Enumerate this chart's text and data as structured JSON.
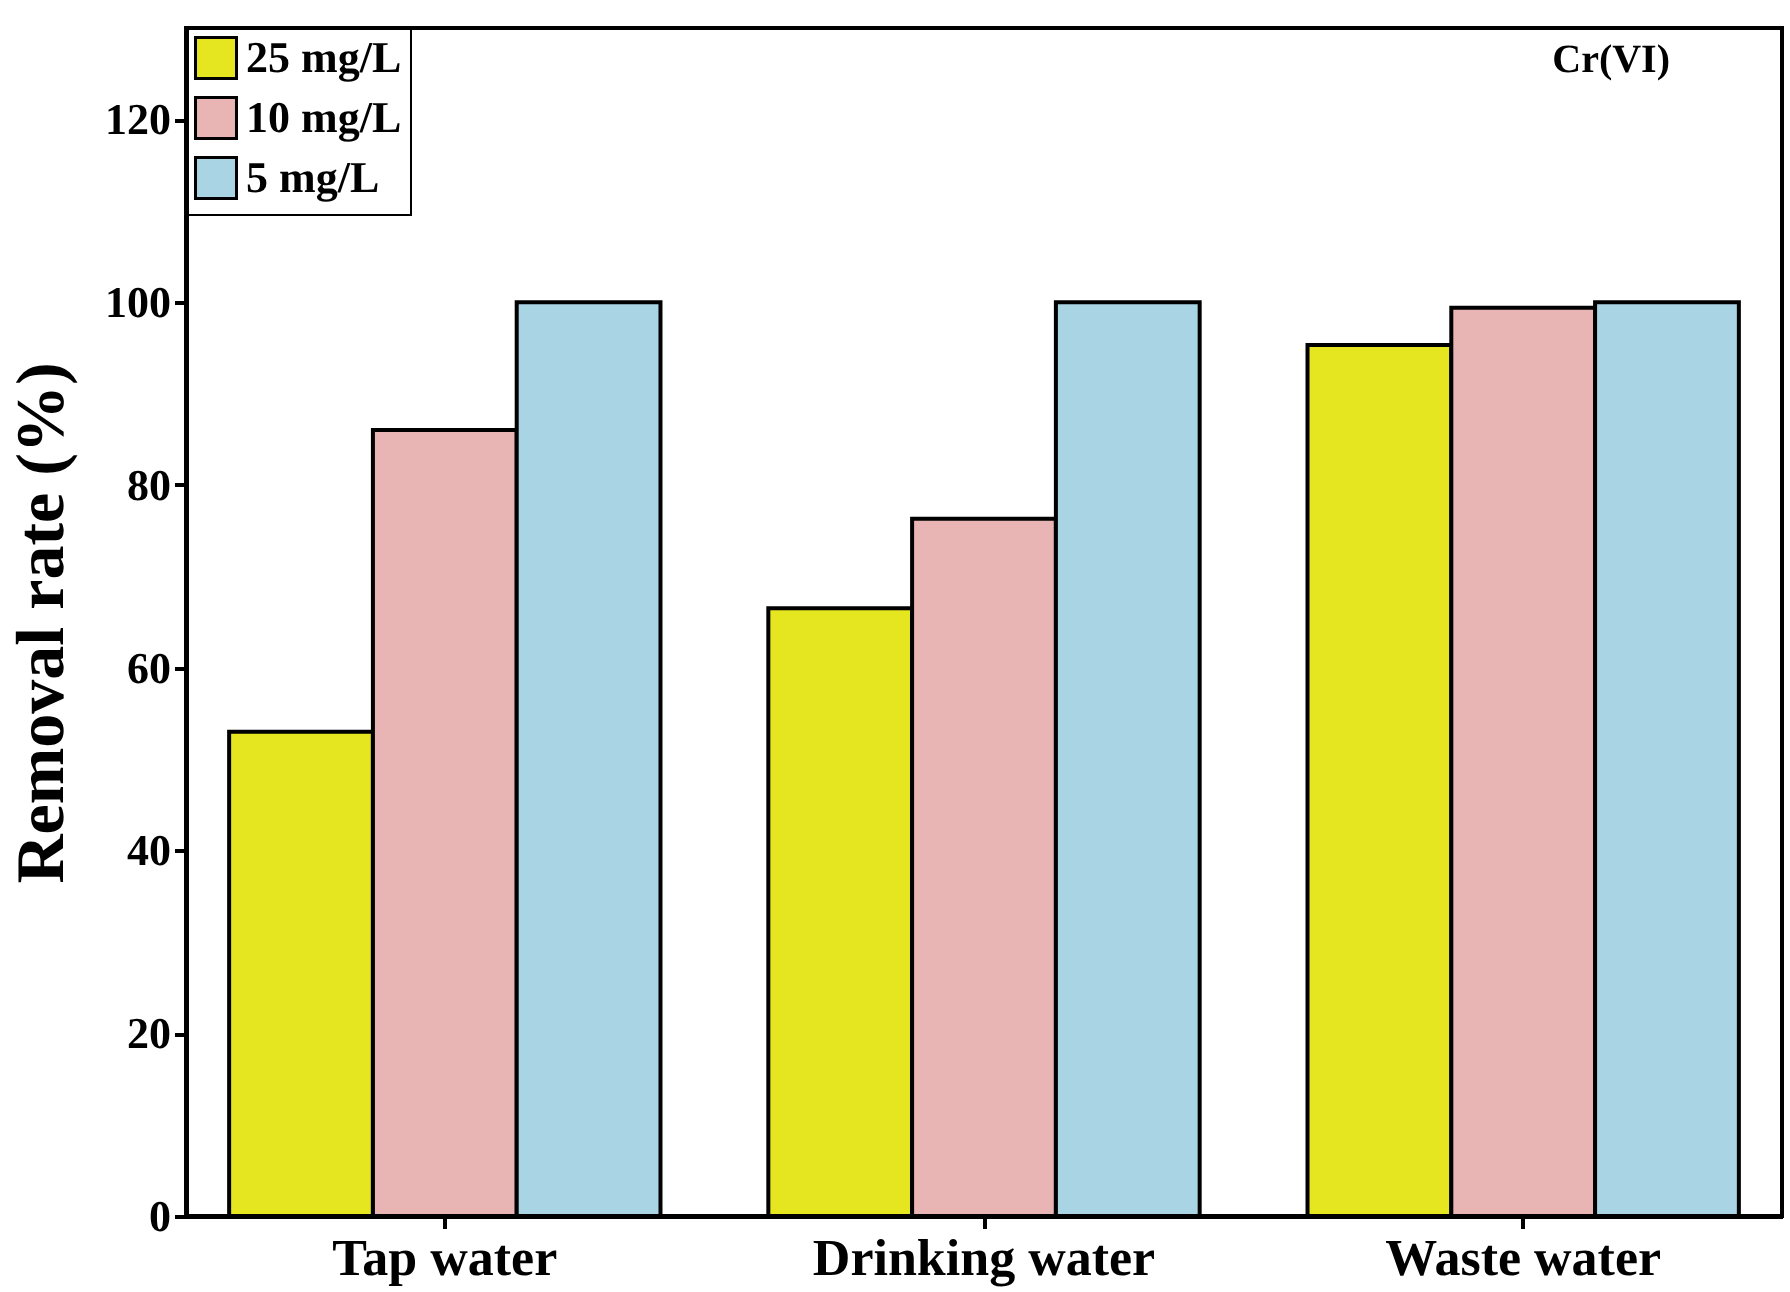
{
  "chart_data": {
    "type": "bar",
    "ylabel": "Removal rate (%)",
    "annotations": [
      "Cr(VI)"
    ],
    "categories": [
      "Tap water",
      "Drinking water",
      "Waste water"
    ],
    "series": [
      {
        "name": "25 mg/L",
        "color": "#e6e620",
        "values": [
          53,
          66.5,
          95.3
        ]
      },
      {
        "name": "10 mg/L",
        "color": "#e8b4b4",
        "values": [
          86,
          76.3,
          99.4
        ]
      },
      {
        "name": "5 mg/L",
        "color": "#a8d4e4",
        "values": [
          100,
          100,
          100
        ]
      }
    ],
    "ylim": [
      0,
      130
    ],
    "yticks": [
      0,
      20,
      40,
      60,
      80,
      100,
      120
    ],
    "grid": false,
    "legend": "top left"
  }
}
